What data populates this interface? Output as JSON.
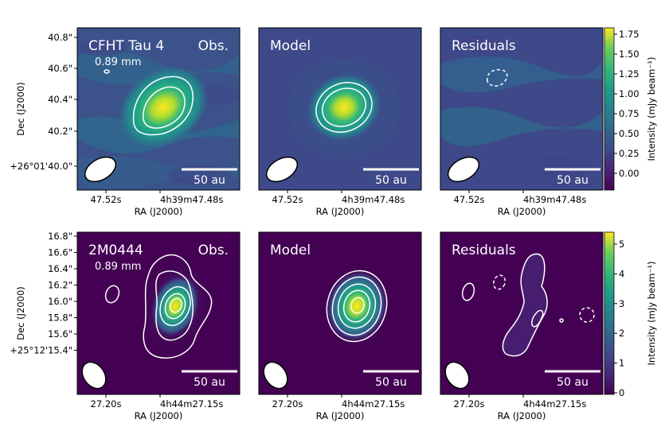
{
  "figure": {
    "rows": [
      {
        "id": "row-cfht",
        "panels": [
          {
            "id": "obs",
            "title": "CFHT Tau 4",
            "tag": "Obs.",
            "subtitle": "0.89 mm",
            "scalebar_label": "50 au"
          },
          {
            "id": "model",
            "title": "Model",
            "tag": "",
            "subtitle": "",
            "scalebar_label": "50 au"
          },
          {
            "id": "res",
            "title": "Residuals",
            "tag": "",
            "subtitle": "",
            "scalebar_label": "50 au"
          }
        ],
        "y_ticks": [
          "40.8\"",
          "40.6\"",
          "40.4\"",
          "40.2\"",
          "+26°01'40.0\""
        ],
        "x_ticks": [
          "47.52s",
          "4h39m47.48s"
        ],
        "xlabel": "RA (J2000)",
        "ylabel": "Dec (J2000)",
        "colorbar": {
          "label": "Intensity (mJy beam⁻¹)",
          "ticks": [
            "1.75",
            "1.50",
            "1.25",
            "1.00",
            "0.75",
            "0.50",
            "0.25",
            "0.00"
          ]
        }
      },
      {
        "id": "row-2m",
        "panels": [
          {
            "id": "obs",
            "title": "2M0444",
            "tag": "Obs.",
            "subtitle": "0.89 mm",
            "scalebar_label": "50 au"
          },
          {
            "id": "model",
            "title": "Model",
            "tag": "",
            "subtitle": "",
            "scalebar_label": "50 au"
          },
          {
            "id": "res",
            "title": "Residuals",
            "tag": "",
            "subtitle": "",
            "scalebar_label": "50 au"
          }
        ],
        "y_ticks": [
          "16.8\"",
          "16.6\"",
          "16.4\"",
          "16.2\"",
          "16.0\"",
          "15.8\"",
          "15.6\"",
          "+25°12'15.4\""
        ],
        "x_ticks": [
          "27.20s",
          "4h44m27.15s"
        ],
        "xlabel": "RA (J2000)",
        "ylabel": "Dec (J2000)",
        "colorbar": {
          "label": "Intensity (mJy beam⁻¹)",
          "ticks": [
            "5",
            "4",
            "3",
            "2",
            "1",
            "0"
          ]
        }
      }
    ]
  },
  "chart_data": [
    {
      "type": "heatmap",
      "title": "CFHT Tau 4",
      "panels": [
        "Obs.",
        "Model",
        "Residuals"
      ],
      "wavelength": "0.89 mm",
      "xlabel": "RA (J2000)",
      "ylabel": "Dec (J2000)",
      "x_ticks": [
        "47.52s",
        "4h39m47.48s"
      ],
      "y_ticks": [
        "40.8\"",
        "40.6\"",
        "40.4\"",
        "40.2\"",
        "+26°01'40.0\""
      ],
      "colorbar_label": "Intensity (mJy beam⁻¹)",
      "colorbar_range": [
        -0.15,
        1.8
      ],
      "colorbar_ticks": [
        0.0,
        0.25,
        0.5,
        0.75,
        1.0,
        1.25,
        1.5,
        1.75
      ],
      "colormap": "viridis",
      "peak_intensity": 1.75,
      "scalebar": "50 au"
    },
    {
      "type": "heatmap",
      "title": "2M0444",
      "panels": [
        "Obs.",
        "Model",
        "Residuals"
      ],
      "wavelength": "0.89 mm",
      "xlabel": "RA (J2000)",
      "ylabel": "Dec (J2000)",
      "x_ticks": [
        "27.20s",
        "4h44m27.15s"
      ],
      "y_ticks": [
        "16.8\"",
        "16.6\"",
        "16.4\"",
        "16.2\"",
        "16.0\"",
        "15.8\"",
        "15.6\"",
        "+25°12'15.4\""
      ],
      "colorbar_label": "Intensity (mJy beam⁻¹)",
      "colorbar_range": [
        0,
        5.4
      ],
      "colorbar_ticks": [
        0,
        1,
        2,
        3,
        4,
        5
      ],
      "colormap": "viridis",
      "peak_intensity": 5.2,
      "scalebar": "50 au"
    }
  ],
  "colors": {
    "background_low": "#440154",
    "mid": "#21918c",
    "peak": "#fde725",
    "contour": "#ffffff"
  }
}
